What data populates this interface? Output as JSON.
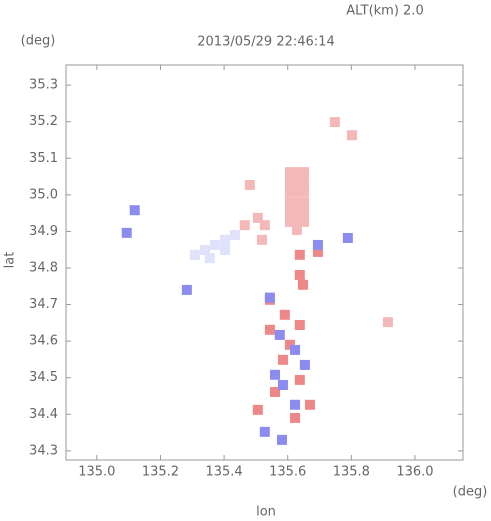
{
  "chart_data": {
    "type": "scatter",
    "title": "2013/05/29 22:46:14",
    "subtitle": "ALT(km) 2.0",
    "x_label": "lon",
    "y_label": "lat",
    "x_unit": "(deg)",
    "y_unit": "(deg)",
    "xlim": [
      134.903,
      136.151
    ],
    "ylim": [
      34.275,
      35.355
    ],
    "xticks": [
      {
        "value": 135,
        "label": "135.0"
      },
      135.2,
      135.4,
      135.6,
      135.8,
      {
        "value": 136,
        "label": "136.0"
      }
    ],
    "yticks": [
      34.3,
      34.4,
      34.5,
      34.6,
      34.7,
      34.8,
      34.9,
      {
        "value": 35,
        "label": "35.0"
      },
      35.1,
      35.2,
      35.3
    ],
    "series": [
      {
        "color": "#f4b8b8",
        "x": [
          135.607,
          135.629,
          135.651,
          135.607,
          135.629,
          135.651,
          135.607,
          135.629,
          135.651,
          135.607,
          135.629,
          135.651,
          135.607,
          135.629,
          135.651,
          135.607,
          135.629,
          135.651,
          135.629,
          135.465,
          135.506,
          135.528,
          135.519,
          135.481,
          135.748,
          135.802,
          135.915
        ],
        "values": [
          35.062,
          35.062,
          35.062,
          35.035,
          35.035,
          35.035,
          35.008,
          35.008,
          35.008,
          34.98,
          34.98,
          34.98,
          34.953,
          34.953,
          34.953,
          34.926,
          34.926,
          34.926,
          34.904,
          34.917,
          34.937,
          34.917,
          34.877,
          35.027,
          35.199,
          35.163,
          34.652
        ]
      },
      {
        "color": "#dfe2fa",
        "x": [
          135.308,
          135.34,
          135.371,
          135.403,
          135.434,
          135.355,
          135.403
        ],
        "values": [
          34.836,
          34.849,
          34.863,
          34.877,
          34.89,
          34.827,
          34.849
        ]
      },
      {
        "color": "#ee8888",
        "x": [
          135.638,
          135.695,
          135.638,
          135.648,
          135.544,
          135.591,
          135.638,
          135.544,
          135.607,
          135.585,
          135.638,
          135.56,
          135.67,
          135.623,
          135.506
        ],
        "values": [
          34.836,
          34.844,
          34.781,
          34.754,
          34.713,
          34.672,
          34.644,
          34.631,
          34.59,
          34.549,
          34.494,
          34.461,
          34.426,
          34.39,
          34.412
        ]
      },
      {
        "color": "#8c8cf0",
        "x": [
          135.119,
          135.094,
          135.789,
          135.695,
          135.544,
          135.575,
          135.623,
          135.56,
          135.585,
          135.623,
          135.528,
          135.654,
          135.283,
          135.582
        ],
        "values": [
          34.958,
          34.896,
          34.882,
          34.863,
          34.719,
          34.617,
          34.576,
          34.508,
          34.48,
          34.426,
          34.352,
          34.535,
          34.74,
          34.33
        ]
      }
    ]
  }
}
